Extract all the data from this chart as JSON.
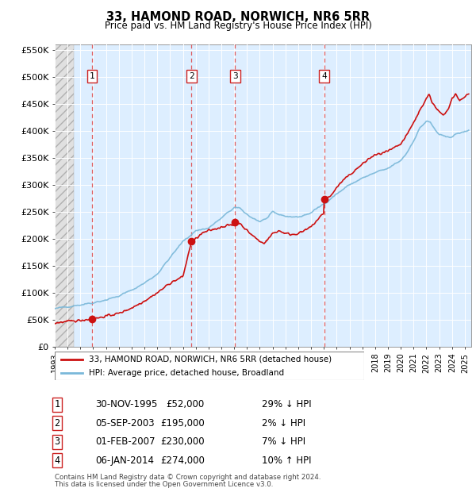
{
  "title": "33, HAMOND ROAD, NORWICH, NR6 5RR",
  "subtitle": "Price paid vs. HM Land Registry's House Price Index (HPI)",
  "xlim_start": 1993.0,
  "xlim_end": 2025.5,
  "ylim_min": 0,
  "ylim_max": 560000,
  "yticks": [
    0,
    50000,
    100000,
    150000,
    200000,
    250000,
    300000,
    350000,
    400000,
    450000,
    500000,
    550000
  ],
  "ytick_labels": [
    "£0",
    "£50K",
    "£100K",
    "£150K",
    "£200K",
    "£250K",
    "£300K",
    "£350K",
    "£400K",
    "£450K",
    "£500K",
    "£550K"
  ],
  "transactions": [
    {
      "num": 1,
      "date": "30-NOV-1995",
      "year": 1995.92,
      "price": 52000,
      "pct": "29%",
      "dir": "↓"
    },
    {
      "num": 2,
      "date": "05-SEP-2003",
      "year": 2003.67,
      "price": 195000,
      "pct": "2%",
      "dir": "↓"
    },
    {
      "num": 3,
      "date": "01-FEB-2007",
      "year": 2007.08,
      "price": 230000,
      "pct": "7%",
      "dir": "↓"
    },
    {
      "num": 4,
      "date": "06-JAN-2014",
      "year": 2014.02,
      "price": 274000,
      "pct": "10%",
      "dir": "↑"
    }
  ],
  "hpi_color": "#7ab8d9",
  "price_color": "#cc1111",
  "legend_label_price": "33, HAMOND ROAD, NORWICH, NR6 5RR (detached house)",
  "legend_label_hpi": "HPI: Average price, detached house, Broadland",
  "footer1": "Contains HM Land Registry data © Crown copyright and database right 2024.",
  "footer2": "This data is licensed under the Open Government Licence v3.0.",
  "bg_color": "#ddeeff",
  "hatch_end_year": 1994.5
}
